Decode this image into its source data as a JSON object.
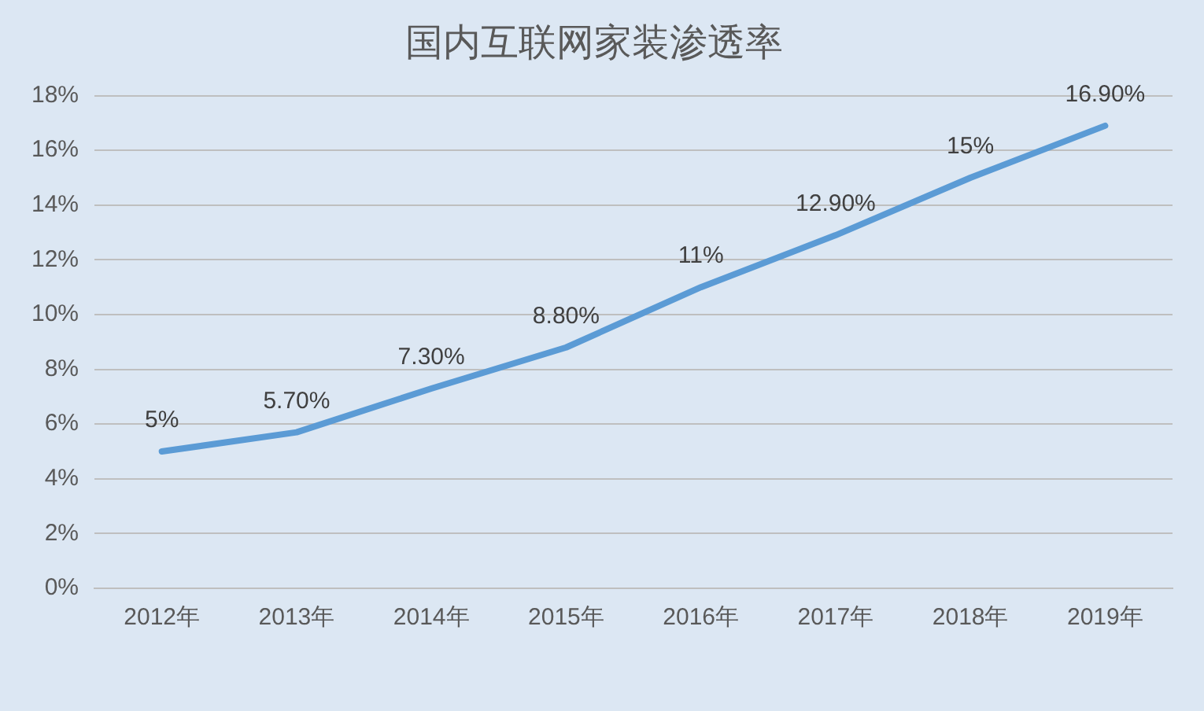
{
  "chart_data": {
    "type": "line",
    "title": "国内互联网家装渗透率",
    "categories": [
      "2012年",
      "2013年",
      "2014年",
      "2015年",
      "2016年",
      "2017年",
      "2018年",
      "2019年"
    ],
    "series": [
      {
        "color": "#5b9bd5",
        "values": [
          5,
          5.7,
          7.3,
          8.8,
          11,
          12.9,
          15,
          16.9
        ],
        "value_labels": [
          "5%",
          "5.70%",
          "7.30%",
          "8.80%",
          "11%",
          "12.90%",
          "15%",
          "16.90%"
        ]
      }
    ],
    "ylim": [
      0,
      18
    ],
    "yticks": [
      {
        "value": 0,
        "label": "0%"
      },
      {
        "value": 2,
        "label": "2%"
      },
      {
        "value": 4,
        "label": "4%"
      },
      {
        "value": 6,
        "label": "6%"
      },
      {
        "value": 8,
        "label": "8%"
      },
      {
        "value": 10,
        "label": "10%"
      },
      {
        "value": 12,
        "label": "12%"
      },
      {
        "value": 14,
        "label": "14%"
      },
      {
        "value": 16,
        "label": "16%"
      },
      {
        "value": 18,
        "label": "18%"
      }
    ],
    "grid": "y",
    "legend": false,
    "marker": "none",
    "line_style": "solid"
  }
}
